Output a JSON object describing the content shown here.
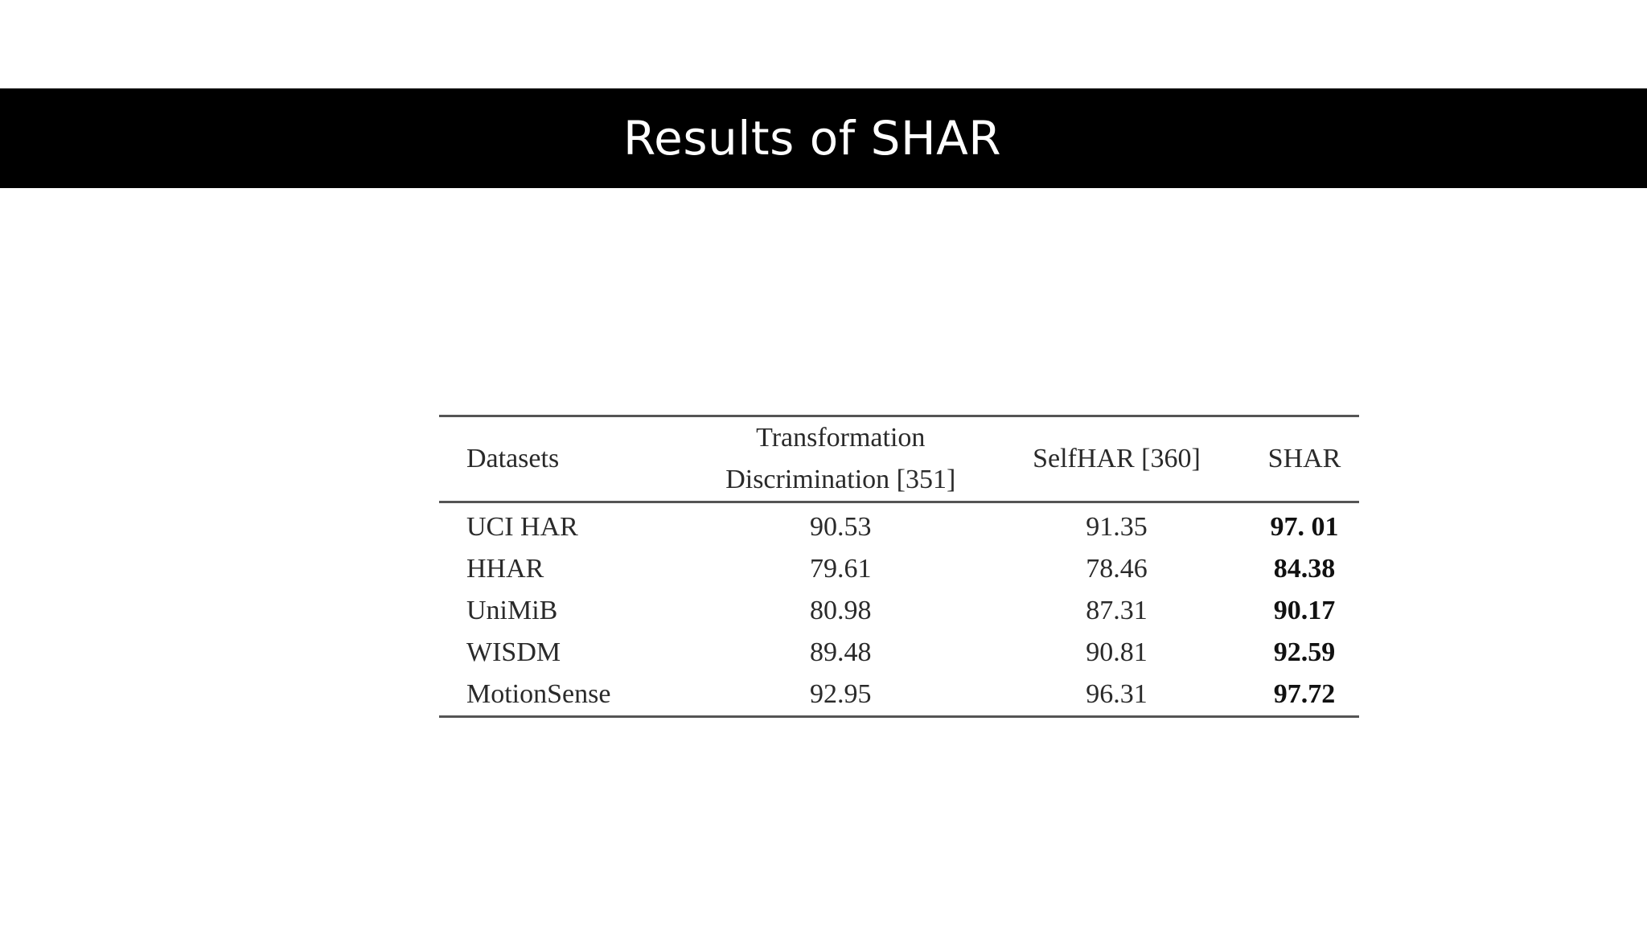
{
  "slide": {
    "title": "Results of SHAR"
  },
  "table": {
    "headers": {
      "datasets": "Datasets",
      "td_line1": "Transformation",
      "td_line2": "Discrimination [351]",
      "selfhar": "SelfHAR [360]",
      "shar": "SHAR"
    },
    "rows": [
      {
        "dataset": "UCI HAR",
        "td": "90.53",
        "selfhar": "91.35",
        "shar": "97. 01"
      },
      {
        "dataset": "HHAR",
        "td": "79.61",
        "selfhar": "78.46",
        "shar": "84.38"
      },
      {
        "dataset": "UniMiB",
        "td": "80.98",
        "selfhar": "87.31",
        "shar": "90.17"
      },
      {
        "dataset": "WISDM",
        "td": "89.48",
        "selfhar": "90.81",
        "shar": "92.59"
      },
      {
        "dataset": "MotionSense",
        "td": "92.95",
        "selfhar": "96.31",
        "shar": "97.72"
      }
    ]
  }
}
